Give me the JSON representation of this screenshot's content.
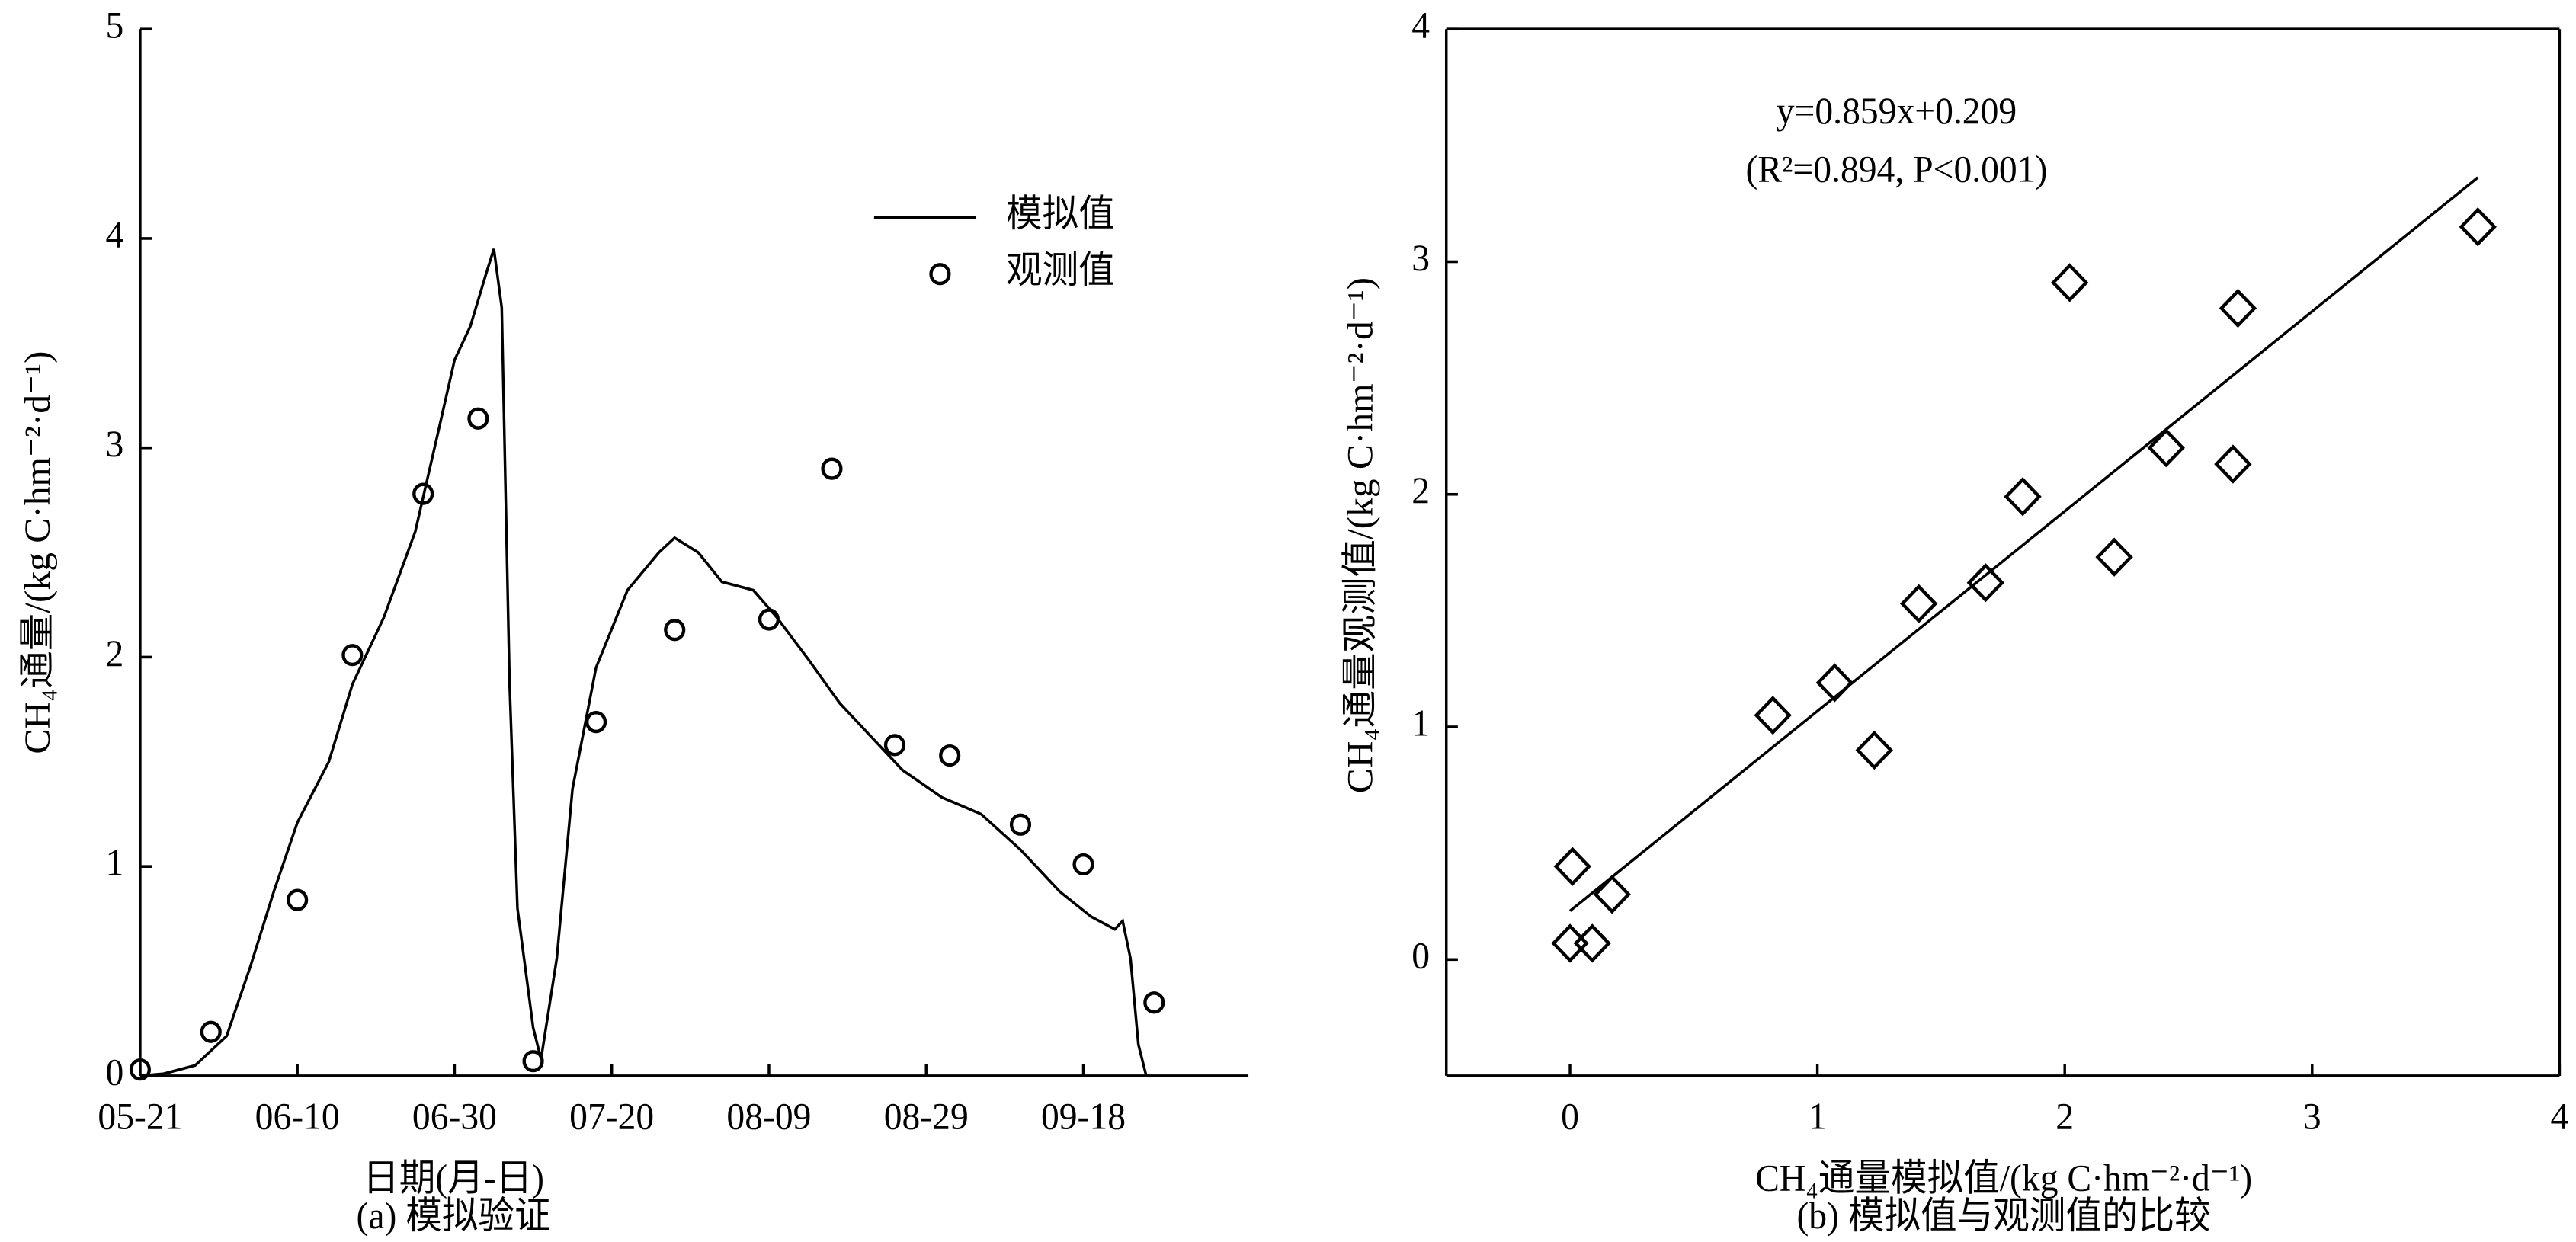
{
  "chart_data": [
    {
      "type": "line",
      "caption": "(a) 模拟验证",
      "x_label": "日期(月-日)",
      "y_label": "CH₄通量/(kg C·hm⁻²·d⁻¹)",
      "xlim": [
        "05-21",
        "10-09"
      ],
      "xticks": [
        "05-21",
        "06-10",
        "06-30",
        "07-20",
        "08-09",
        "08-29",
        "09-18"
      ],
      "ylim": [
        0,
        5
      ],
      "yticks": [
        0,
        1,
        2,
        3,
        4,
        5
      ],
      "box": false,
      "legend": "upper right",
      "series": [
        {
          "name": "模拟值",
          "type": "line",
          "color": "#000000",
          "x": [
            "05-21",
            "05-24",
            "05-28",
            "06-01",
            "06-04",
            "06-07",
            "06-10",
            "06-14",
            "06-17",
            "06-21",
            "06-25",
            "06-28",
            "06-30",
            "07-02",
            "07-04",
            "07-05",
            "07-06",
            "07-07",
            "07-08",
            "07-10",
            "07-11",
            "07-13",
            "07-15",
            "07-18",
            "07-22",
            "07-26",
            "07-28",
            "07-31",
            "08-03",
            "08-07",
            "08-10",
            "08-14",
            "08-18",
            "08-22",
            "08-26",
            "08-31",
            "09-05",
            "09-10",
            "09-15",
            "09-19",
            "09-22",
            "09-23",
            "09-24",
            "09-25",
            "09-26"
          ],
          "values": [
            0,
            0.01,
            0.05,
            0.19,
            0.52,
            0.88,
            1.21,
            1.5,
            1.87,
            2.19,
            2.6,
            3.09,
            3.42,
            3.58,
            3.83,
            3.95,
            3.67,
            1.87,
            0.8,
            0.23,
            0.08,
            0.56,
            1.37,
            1.95,
            2.32,
            2.5,
            2.57,
            2.5,
            2.36,
            2.32,
            2.19,
            1.99,
            1.78,
            1.62,
            1.46,
            1.33,
            1.25,
            1.08,
            0.88,
            0.76,
            0.7,
            0.74,
            0.56,
            0.15,
            0
          ]
        },
        {
          "name": "观测值",
          "type": "scatter",
          "marker": "circle",
          "color": "#000000",
          "x": [
            "05-21",
            "05-30",
            "06-10",
            "06-17",
            "06-26",
            "07-03",
            "07-10",
            "07-18",
            "07-28",
            "08-09",
            "08-17",
            "08-25",
            "09-01",
            "09-10",
            "09-18",
            "09-27"
          ],
          "values": [
            0.03,
            0.21,
            0.84,
            2.01,
            2.78,
            3.14,
            0.07,
            1.69,
            2.13,
            2.18,
            2.9,
            1.58,
            1.53,
            1.2,
            1.01,
            0.35
          ]
        }
      ]
    },
    {
      "type": "scatter",
      "caption": "(b) 模拟值与观测值的比较",
      "x_label": "CH₄通量模拟值/(kg C·hm⁻²·d⁻¹)",
      "y_label": "CH₄通量观测值/(kg C·hm⁻²·d⁻¹)",
      "xlim": [
        -0.5,
        4
      ],
      "xticks": [
        0,
        1,
        2,
        3,
        4
      ],
      "ylim": [
        -0.5,
        4
      ],
      "yticks": [
        0,
        1,
        2,
        3,
        4
      ],
      "box": true,
      "annotations": [
        "y=0.859x+0.209",
        "(R²=0.894, P<0.001)"
      ],
      "series": [
        {
          "type": "scatter",
          "marker": "diamond",
          "color": "#000000",
          "x": [
            0.01,
            0,
            0.09,
            0.17,
            0.82,
            1.07,
            1.23,
            1.41,
            1.68,
            1.83,
            2.02,
            2.2,
            2.41,
            2.68,
            2.7,
            3.67
          ],
          "values": [
            0.4,
            0.07,
            0.07,
            0.28,
            1.05,
            1.19,
            0.9,
            1.53,
            1.62,
            1.99,
            2.91,
            1.73,
            2.2,
            2.13,
            2.8,
            3.15
          ]
        },
        {
          "type": "line",
          "color": "#000000",
          "x": [
            0,
            3.67
          ],
          "values": [
            0.209,
            3.362
          ]
        }
      ]
    }
  ]
}
